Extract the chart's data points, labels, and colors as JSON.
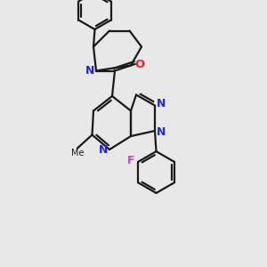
{
  "bg_color": "#e8e8e8",
  "bond_color": "#1a1a1a",
  "n_color": "#2222ee",
  "o_color": "#ee2222",
  "f_color": "#cc44bb",
  "bond_width": 1.6,
  "figsize": [
    3.0,
    3.0
  ],
  "dpi": 100,
  "xlim": [
    0,
    10
  ],
  "ylim": [
    0,
    10
  ]
}
